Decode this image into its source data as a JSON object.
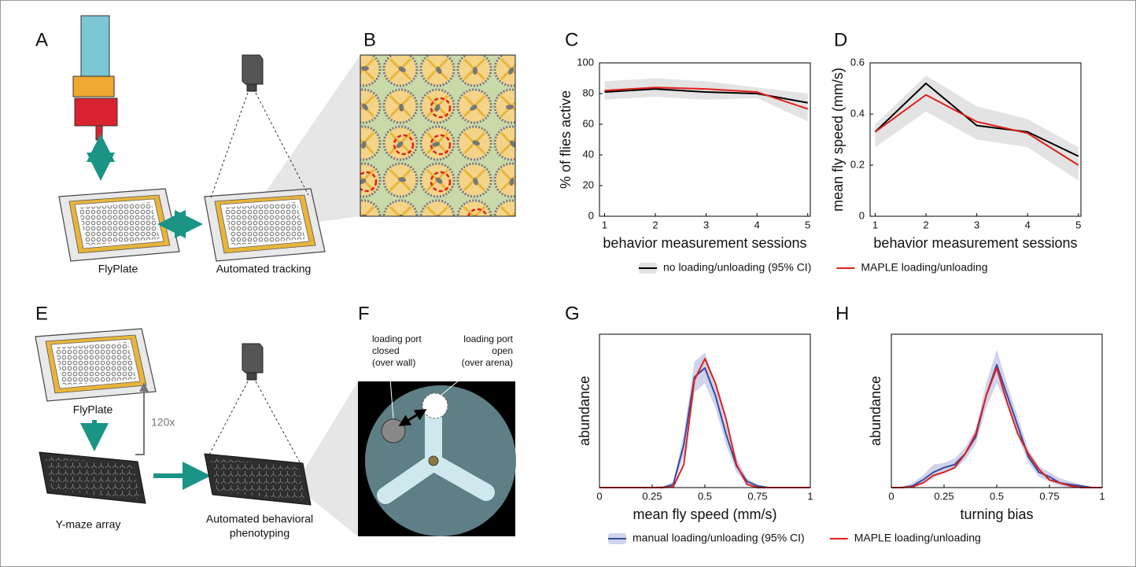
{
  "diagram": {
    "panel_labels": [
      "A",
      "B",
      "E",
      "F"
    ],
    "a": {
      "plate_label": "FlyPlate",
      "tracking_label": "Automated tracking"
    },
    "e": {
      "plate_label": "FlyPlate",
      "repeat_label": "120x",
      "maze_label": "Y-maze array",
      "phenotyping_label": [
        "Automated behavioral",
        "phenotyping"
      ]
    },
    "f": {
      "closed_label": [
        "loading port",
        "closed",
        "(over wall)"
      ],
      "open_label": [
        "loading port",
        "open",
        "(over arena)"
      ]
    }
  },
  "chart_data": [
    {
      "type": "line",
      "panel_label": "C",
      "xlabel": "behavior measurement sessions",
      "ylabel": "% of flies active",
      "x": [
        1,
        2,
        3,
        4,
        5
      ],
      "xlim": [
        0.9,
        5.05
      ],
      "xticks": [
        1,
        2,
        3,
        4,
        5
      ],
      "ylim": [
        0,
        100
      ],
      "yticks": [
        0,
        20,
        40,
        60,
        80,
        100
      ],
      "legend": "bottom",
      "series": [
        {
          "name": "no loading/unloading (95% CI)",
          "color": "#000000",
          "band_color": "#e3e3e3",
          "values": [
            81,
            83,
            81,
            80,
            74
          ],
          "ci_upper": [
            88,
            90,
            88,
            84,
            80
          ],
          "ci_lower": [
            76,
            78,
            76,
            77,
            62
          ]
        },
        {
          "name": "MAPLE loading/unloading",
          "color": "#e0201b",
          "values": [
            82,
            84,
            83,
            81,
            70
          ]
        }
      ]
    },
    {
      "type": "line",
      "panel_label": "D",
      "xlabel": "behavior measurement sessions",
      "ylabel": "mean fly speed (mm/s)",
      "x": [
        1,
        2,
        3,
        4,
        5
      ],
      "xlim": [
        0.9,
        5.05
      ],
      "xticks": [
        1,
        2,
        3,
        4,
        5
      ],
      "ylim": [
        0,
        0.6
      ],
      "yticks": [
        0,
        0.2,
        0.4,
        0.6
      ],
      "series": [
        {
          "color": "#000000",
          "band_color": "#e3e3e3",
          "values": [
            0.33,
            0.52,
            0.355,
            0.33,
            0.235
          ],
          "ci_upper": [
            0.36,
            0.55,
            0.43,
            0.38,
            0.27
          ],
          "ci_lower": [
            0.27,
            0.41,
            0.3,
            0.27,
            0.14
          ]
        },
        {
          "color": "#e0201b",
          "values": [
            0.33,
            0.475,
            0.37,
            0.325,
            0.2
          ]
        }
      ]
    },
    {
      "type": "line",
      "panel_label": "G",
      "xlabel": "mean fly speed (mm/s)",
      "ylabel": "abundance",
      "x": [
        0,
        0.05,
        0.1,
        0.15,
        0.2,
        0.25,
        0.3,
        0.35,
        0.4,
        0.45,
        0.5,
        0.55,
        0.6,
        0.65,
        0.7,
        0.75,
        0.8,
        0.85,
        0.9,
        0.95,
        1
      ],
      "xlim": [
        0,
        1
      ],
      "xticks": [
        0,
        0.25,
        0.5,
        0.75,
        1
      ],
      "ylim": [
        0,
        1
      ],
      "legend": "bottom",
      "series": [
        {
          "name": "manual loading/unloading (95% CI)",
          "color": "#3a4a9a",
          "band_color": "#cfd3ec",
          "values": [
            0,
            0,
            0,
            0,
            0,
            0,
            0.001,
            0.02,
            0.28,
            0.72,
            0.78,
            0.6,
            0.35,
            0.14,
            0.04,
            0.01,
            0,
            0,
            0,
            0,
            0
          ],
          "ci_upper": [
            0,
            0,
            0,
            0,
            0,
            0,
            0.003,
            0.04,
            0.35,
            0.82,
            0.88,
            0.68,
            0.42,
            0.19,
            0.06,
            0.02,
            0.003,
            0,
            0,
            0,
            0
          ],
          "ci_lower": [
            0,
            0,
            0,
            0,
            0,
            0,
            0,
            0.01,
            0.2,
            0.62,
            0.68,
            0.52,
            0.28,
            0.1,
            0.02,
            0.005,
            0,
            0,
            0,
            0,
            0
          ]
        },
        {
          "name": "MAPLE loading/unloading",
          "color": "#e0201b",
          "values": [
            0,
            0,
            0,
            0,
            0,
            0,
            0,
            0.005,
            0.15,
            0.7,
            0.84,
            0.68,
            0.45,
            0.15,
            0.02,
            0,
            0,
            0,
            0,
            0,
            0
          ]
        }
      ]
    },
    {
      "type": "line",
      "panel_label": "H",
      "xlabel": "turning bias",
      "ylabel": "abundance",
      "x": [
        0,
        0.05,
        0.1,
        0.15,
        0.2,
        0.25,
        0.3,
        0.35,
        0.4,
        0.45,
        0.5,
        0.55,
        0.6,
        0.65,
        0.7,
        0.75,
        0.8,
        0.85,
        0.9,
        0.95,
        1
      ],
      "xlim": [
        0,
        1
      ],
      "xticks": [
        0,
        0.25,
        0.5,
        0.75,
        1
      ],
      "ylim": [
        0,
        1
      ],
      "series": [
        {
          "color": "#3a4a9a",
          "band_color": "#cfd3ec",
          "values": [
            0,
            0,
            0.01,
            0.05,
            0.1,
            0.13,
            0.15,
            0.22,
            0.33,
            0.6,
            0.8,
            0.6,
            0.4,
            0.2,
            0.1,
            0.07,
            0.03,
            0.02,
            0.01,
            0,
            0
          ],
          "ci_upper": [
            0,
            0.003,
            0.03,
            0.08,
            0.15,
            0.16,
            0.19,
            0.26,
            0.38,
            0.68,
            0.9,
            0.67,
            0.46,
            0.25,
            0.14,
            0.1,
            0.06,
            0.04,
            0.02,
            0.005,
            0
          ],
          "ci_lower": [
            0,
            0,
            0,
            0.03,
            0.06,
            0.1,
            0.12,
            0.18,
            0.28,
            0.52,
            0.68,
            0.54,
            0.34,
            0.16,
            0.07,
            0.04,
            0.01,
            0,
            0,
            0,
            0
          ]
        },
        {
          "color": "#e0201b",
          "values": [
            0,
            0,
            0.005,
            0.03,
            0.08,
            0.1,
            0.13,
            0.22,
            0.35,
            0.6,
            0.78,
            0.55,
            0.35,
            0.22,
            0.12,
            0.05,
            0.03,
            0.01,
            0,
            0,
            0
          ]
        }
      ]
    }
  ]
}
